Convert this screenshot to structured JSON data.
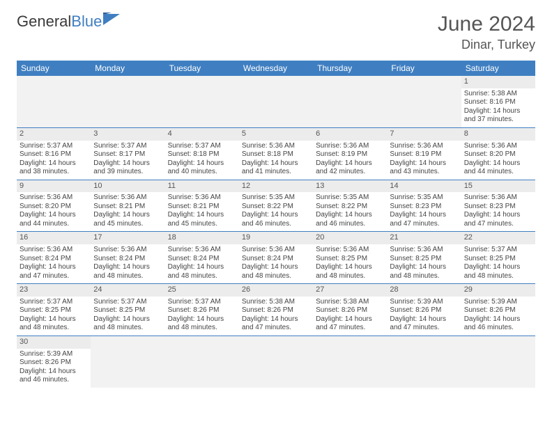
{
  "brand": {
    "part1": "General",
    "part2": "Blue"
  },
  "title": "June 2024",
  "location": "Dinar, Turkey",
  "colors": {
    "header_bg": "#3f7fc1",
    "header_text": "#ffffff",
    "daynum_bg": "#ececec",
    "row_divider": "#3f7fc1",
    "text": "#3a3a3a"
  },
  "weekdays": [
    "Sunday",
    "Monday",
    "Tuesday",
    "Wednesday",
    "Thursday",
    "Friday",
    "Saturday"
  ],
  "labels": {
    "sunrise": "Sunrise:",
    "sunset": "Sunset:",
    "daylight": "Daylight:"
  },
  "weeks": [
    [
      null,
      null,
      null,
      null,
      null,
      null,
      {
        "n": "1",
        "rise": "5:38 AM",
        "set": "8:16 PM",
        "dl": "14 hours and 37 minutes."
      }
    ],
    [
      {
        "n": "2",
        "rise": "5:37 AM",
        "set": "8:16 PM",
        "dl": "14 hours and 38 minutes."
      },
      {
        "n": "3",
        "rise": "5:37 AM",
        "set": "8:17 PM",
        "dl": "14 hours and 39 minutes."
      },
      {
        "n": "4",
        "rise": "5:37 AM",
        "set": "8:18 PM",
        "dl": "14 hours and 40 minutes."
      },
      {
        "n": "5",
        "rise": "5:36 AM",
        "set": "8:18 PM",
        "dl": "14 hours and 41 minutes."
      },
      {
        "n": "6",
        "rise": "5:36 AM",
        "set": "8:19 PM",
        "dl": "14 hours and 42 minutes."
      },
      {
        "n": "7",
        "rise": "5:36 AM",
        "set": "8:19 PM",
        "dl": "14 hours and 43 minutes."
      },
      {
        "n": "8",
        "rise": "5:36 AM",
        "set": "8:20 PM",
        "dl": "14 hours and 44 minutes."
      }
    ],
    [
      {
        "n": "9",
        "rise": "5:36 AM",
        "set": "8:20 PM",
        "dl": "14 hours and 44 minutes."
      },
      {
        "n": "10",
        "rise": "5:36 AM",
        "set": "8:21 PM",
        "dl": "14 hours and 45 minutes."
      },
      {
        "n": "11",
        "rise": "5:36 AM",
        "set": "8:21 PM",
        "dl": "14 hours and 45 minutes."
      },
      {
        "n": "12",
        "rise": "5:35 AM",
        "set": "8:22 PM",
        "dl": "14 hours and 46 minutes."
      },
      {
        "n": "13",
        "rise": "5:35 AM",
        "set": "8:22 PM",
        "dl": "14 hours and 46 minutes."
      },
      {
        "n": "14",
        "rise": "5:35 AM",
        "set": "8:23 PM",
        "dl": "14 hours and 47 minutes."
      },
      {
        "n": "15",
        "rise": "5:36 AM",
        "set": "8:23 PM",
        "dl": "14 hours and 47 minutes."
      }
    ],
    [
      {
        "n": "16",
        "rise": "5:36 AM",
        "set": "8:24 PM",
        "dl": "14 hours and 47 minutes."
      },
      {
        "n": "17",
        "rise": "5:36 AM",
        "set": "8:24 PM",
        "dl": "14 hours and 48 minutes."
      },
      {
        "n": "18",
        "rise": "5:36 AM",
        "set": "8:24 PM",
        "dl": "14 hours and 48 minutes."
      },
      {
        "n": "19",
        "rise": "5:36 AM",
        "set": "8:24 PM",
        "dl": "14 hours and 48 minutes."
      },
      {
        "n": "20",
        "rise": "5:36 AM",
        "set": "8:25 PM",
        "dl": "14 hours and 48 minutes."
      },
      {
        "n": "21",
        "rise": "5:36 AM",
        "set": "8:25 PM",
        "dl": "14 hours and 48 minutes."
      },
      {
        "n": "22",
        "rise": "5:37 AM",
        "set": "8:25 PM",
        "dl": "14 hours and 48 minutes."
      }
    ],
    [
      {
        "n": "23",
        "rise": "5:37 AM",
        "set": "8:25 PM",
        "dl": "14 hours and 48 minutes."
      },
      {
        "n": "24",
        "rise": "5:37 AM",
        "set": "8:25 PM",
        "dl": "14 hours and 48 minutes."
      },
      {
        "n": "25",
        "rise": "5:37 AM",
        "set": "8:26 PM",
        "dl": "14 hours and 48 minutes."
      },
      {
        "n": "26",
        "rise": "5:38 AM",
        "set": "8:26 PM",
        "dl": "14 hours and 47 minutes."
      },
      {
        "n": "27",
        "rise": "5:38 AM",
        "set": "8:26 PM",
        "dl": "14 hours and 47 minutes."
      },
      {
        "n": "28",
        "rise": "5:39 AM",
        "set": "8:26 PM",
        "dl": "14 hours and 47 minutes."
      },
      {
        "n": "29",
        "rise": "5:39 AM",
        "set": "8:26 PM",
        "dl": "14 hours and 46 minutes."
      }
    ],
    [
      {
        "n": "30",
        "rise": "5:39 AM",
        "set": "8:26 PM",
        "dl": "14 hours and 46 minutes."
      },
      null,
      null,
      null,
      null,
      null,
      null
    ]
  ]
}
